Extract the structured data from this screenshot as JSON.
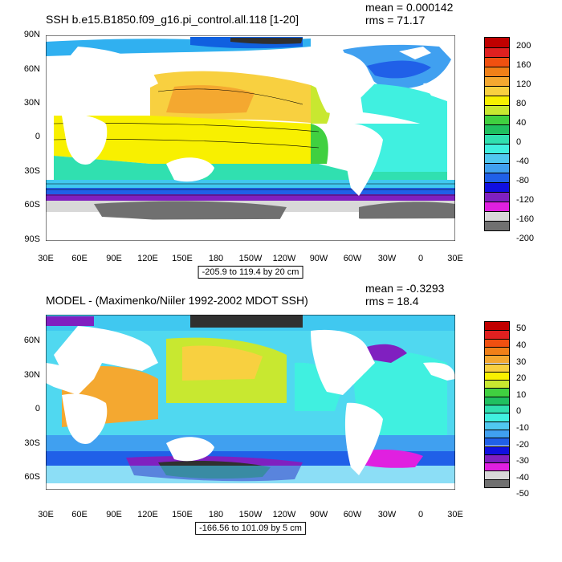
{
  "panel1": {
    "title": "SSH b.e15.B1850.f09_g16.pi_control.all.118 [1-20]",
    "mean": "mean = 0.000142",
    "rms": "rms = 71.17",
    "contour_info": "-205.9 to 119.4 by 20 cm",
    "lat_labels": [
      "90N",
      "60N",
      "30N",
      "0",
      "30S",
      "60S",
      "90S"
    ],
    "lon_labels": [
      "30E",
      "60E",
      "90E",
      "120E",
      "150E",
      "180",
      "150W",
      "120W",
      "90W",
      "60W",
      "30W",
      "0",
      "30E"
    ],
    "colorbar": {
      "labels": [
        "200",
        "160",
        "120",
        "80",
        "40",
        "0",
        "-40",
        "-80",
        "-120",
        "-160",
        "-200"
      ],
      "colors": [
        "#c00000",
        "#e02020",
        "#f05010",
        "#f08018",
        "#f4a830",
        "#f8d040",
        "#f8f000",
        "#c8e830",
        "#40d040",
        "#20c060",
        "#30e0b0",
        "#40f0e0",
        "#50c8f0",
        "#40a0f0",
        "#2060e8",
        "#1010e0",
        "#8020c0",
        "#e020e0",
        "#d8d8d8",
        "#707070"
      ]
    }
  },
  "panel2": {
    "title": "MODEL - (Maximenko/Niiler 1992-2002 MDOT SSH)",
    "mean": "mean = -0.3293",
    "rms": "rms = 18.4",
    "contour_info": "-166.56 to 101.09 by 5 cm",
    "lat_labels": [
      "60N",
      "30N",
      "0",
      "30S",
      "60S"
    ],
    "lon_labels": [
      "30E",
      "60E",
      "90E",
      "120E",
      "150E",
      "180",
      "150W",
      "120W",
      "90W",
      "60W",
      "30W",
      "0",
      "30E"
    ],
    "colorbar": {
      "labels": [
        "50",
        "40",
        "30",
        "20",
        "10",
        "0",
        "-10",
        "-20",
        "-30",
        "-40",
        "-50"
      ],
      "colors": [
        "#c00000",
        "#e02020",
        "#f05010",
        "#f08018",
        "#f4a830",
        "#f8d040",
        "#f8f000",
        "#c8e830",
        "#40d040",
        "#20c060",
        "#30e0b0",
        "#40f0e0",
        "#50c8f0",
        "#40a0f0",
        "#2060e8",
        "#1010e0",
        "#8020c0",
        "#e020e0",
        "#d8d8d8",
        "#707070"
      ]
    }
  }
}
